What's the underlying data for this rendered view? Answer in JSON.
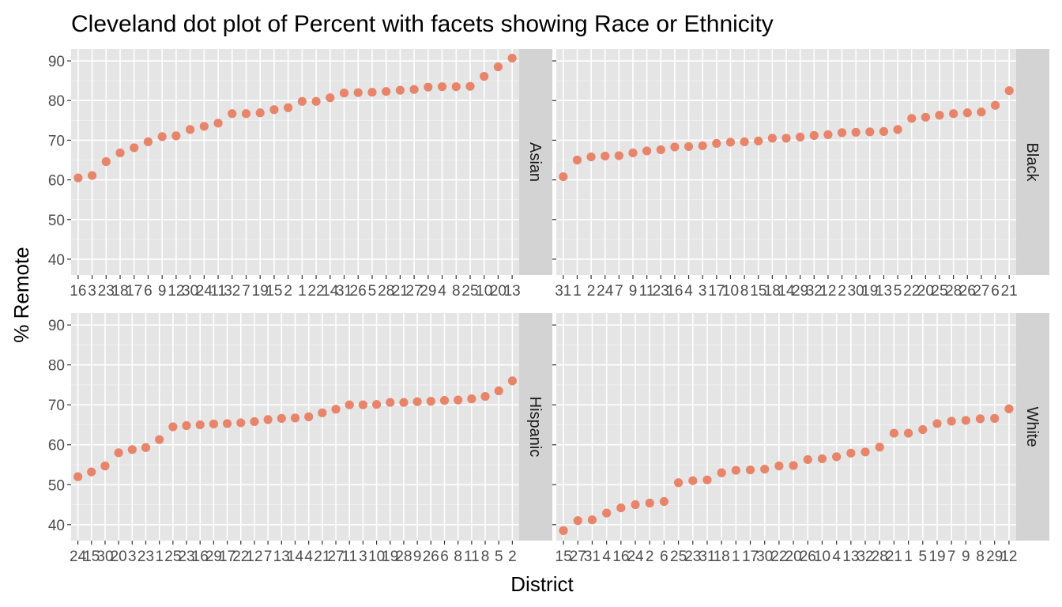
{
  "chart_data": {
    "type": "scatter",
    "title": "Cleveland dot plot of Percent with facets showing Race or Ethnicity",
    "xlabel": "District",
    "ylabel": "% Remote",
    "ylim": [
      36,
      93
    ],
    "yticks": [
      40,
      50,
      60,
      70,
      80,
      90
    ],
    "grid": true,
    "point_color": "#E8846A",
    "panel_bg": "#E5E5E5",
    "strip_bg": "#D3D3D3",
    "facets": [
      {
        "name": "Asian",
        "x": [
          "16",
          "3",
          "23",
          "18",
          "17",
          "6",
          "9",
          "12",
          "30",
          "24",
          "11",
          "32",
          "7",
          "19",
          "15",
          "2",
          "1",
          "22",
          "14",
          "31",
          "26",
          "5",
          "28",
          "21",
          "27",
          "29",
          "4",
          "8",
          "25",
          "10",
          "20",
          "13"
        ],
        "values": [
          60.5,
          61.1,
          64.6,
          66.8,
          68.1,
          69.6,
          70.9,
          71.1,
          72.7,
          73.5,
          74.3,
          76.7,
          76.7,
          76.9,
          77.7,
          78.2,
          79.8,
          79.8,
          80.7,
          81.9,
          82.0,
          82.1,
          82.3,
          82.6,
          82.8,
          83.4,
          83.5,
          83.5,
          83.6,
          86.1,
          88.5,
          90.7
        ]
      },
      {
        "name": "Black",
        "x": [
          "31",
          "1",
          "2",
          "24",
          "7",
          "9",
          "11",
          "23",
          "16",
          "4",
          "3",
          "17",
          "10",
          "8",
          "15",
          "18",
          "14",
          "29",
          "32",
          "12",
          "2",
          "30",
          "19",
          "13",
          "5",
          "22",
          "20",
          "25",
          "28",
          "26",
          "27",
          "6",
          "21"
        ],
        "values": [
          60.8,
          65.0,
          65.8,
          66.0,
          66.1,
          66.8,
          67.3,
          67.6,
          68.3,
          68.4,
          68.6,
          69.2,
          69.5,
          69.6,
          69.8,
          70.5,
          70.5,
          70.8,
          71.2,
          71.4,
          71.9,
          72.0,
          72.1,
          72.2,
          72.7,
          75.5,
          75.8,
          76.3,
          76.7,
          76.9,
          77.1,
          78.8,
          82.5
        ]
      },
      {
        "name": "Hispanic",
        "x": [
          "24",
          "15",
          "30",
          "20",
          "3",
          "23",
          "1",
          "25",
          "23",
          "16",
          "29",
          "17",
          "22",
          "12",
          "7",
          "13",
          "14",
          "4",
          "21",
          "27",
          "11",
          "3",
          "10",
          "19",
          "28",
          "9",
          "26",
          "6",
          "8",
          "11",
          "8",
          "5",
          "2"
        ],
        "values": [
          52.0,
          53.2,
          54.7,
          58.0,
          58.8,
          59.3,
          61.3,
          64.5,
          64.8,
          65.0,
          65.2,
          65.3,
          65.5,
          65.8,
          66.3,
          66.6,
          66.7,
          67.0,
          68.0,
          68.9,
          70.0,
          70.0,
          70.1,
          70.6,
          70.6,
          70.8,
          70.9,
          71.1,
          71.2,
          71.5,
          72.1,
          73.5,
          76.0
        ]
      },
      {
        "name": "White",
        "x": [
          "15",
          "27",
          "31",
          "4",
          "16",
          "24",
          "2",
          "6",
          "25",
          "23",
          "31",
          "18",
          "1",
          "17",
          "30",
          "22",
          "20",
          "26",
          "10",
          "4",
          "13",
          "32",
          "28",
          "21",
          "1",
          "5",
          "19",
          "7",
          "9",
          "8",
          "29",
          "12"
        ],
        "values": [
          38.5,
          41.0,
          41.2,
          42.9,
          44.2,
          45.0,
          45.4,
          45.8,
          50.5,
          51.0,
          51.2,
          53.0,
          53.6,
          53.7,
          53.9,
          54.7,
          54.8,
          56.3,
          56.5,
          57.0,
          57.9,
          58.2,
          59.4,
          62.9,
          62.9,
          63.8,
          65.3,
          65.9,
          66.1,
          66.5,
          66.6,
          69.0
        ]
      }
    ]
  }
}
